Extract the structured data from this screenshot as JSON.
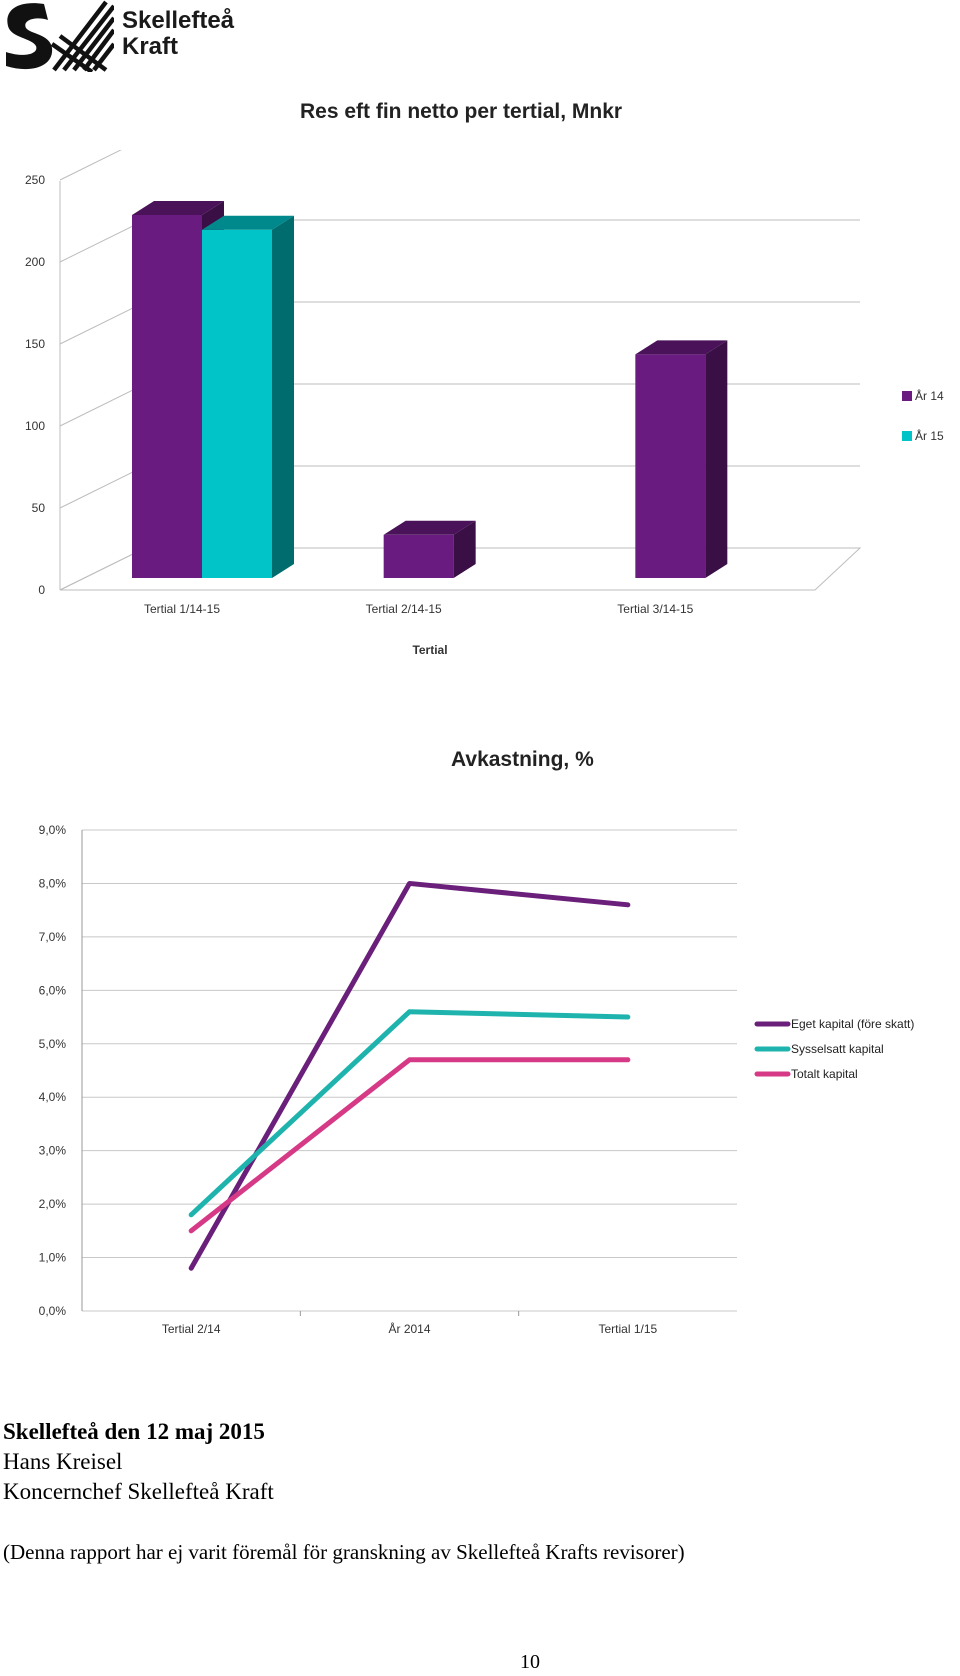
{
  "logo": {
    "line1": "Skellefteå",
    "line2": "Kraft"
  },
  "chart_data": [
    {
      "type": "bar",
      "title": "Res eft fin netto per tertial, Mnkr",
      "xlabel": "Tertial",
      "ylabel": "",
      "categories": [
        "Tertial 1/14-15",
        "Tertial 2/14-15",
        "Tertial 3/14-15"
      ],
      "series": [
        {
          "name": "År 14",
          "color": "#6a1b7f",
          "values": [
            225,
            30,
            140
          ]
        },
        {
          "name": "År 15",
          "color": "#00c4c8",
          "values": [
            216,
            null,
            null
          ]
        }
      ],
      "yticks": [
        "0",
        "50",
        "100",
        "150",
        "200",
        "250"
      ],
      "ylim": [
        0,
        250
      ],
      "legend": "right",
      "grid": true
    },
    {
      "type": "line",
      "title": "Avkastning, %",
      "categories": [
        "Tertial 2/14",
        "År 2014",
        "Tertial 1/15"
      ],
      "series": [
        {
          "name": "Eget kapital (före skatt)",
          "color": "#6a1f7a",
          "values": [
            0.8,
            8.0,
            7.6
          ]
        },
        {
          "name": "Sysselsatt kapital",
          "color": "#1fb3ad",
          "values": [
            1.8,
            5.6,
            5.5
          ]
        },
        {
          "name": "Totalt kapital",
          "color": "#d63a87",
          "values": [
            1.5,
            4.7,
            4.7
          ]
        }
      ],
      "yticks": [
        "0,0%",
        "1,0%",
        "2,0%",
        "3,0%",
        "4,0%",
        "5,0%",
        "6,0%",
        "7,0%",
        "8,0%",
        "9,0%"
      ],
      "ylim": [
        0,
        9
      ],
      "legend": "right",
      "grid": true
    }
  ],
  "signature": {
    "place_date": "Skellefteå den 12 maj 2015",
    "name": "Hans Kreisel",
    "role": "Koncernchef Skellefteå Kraft",
    "note": "(Denna rapport har ej varit föremål för granskning av Skellefteå Krafts revisorer)"
  },
  "page_number": "10"
}
